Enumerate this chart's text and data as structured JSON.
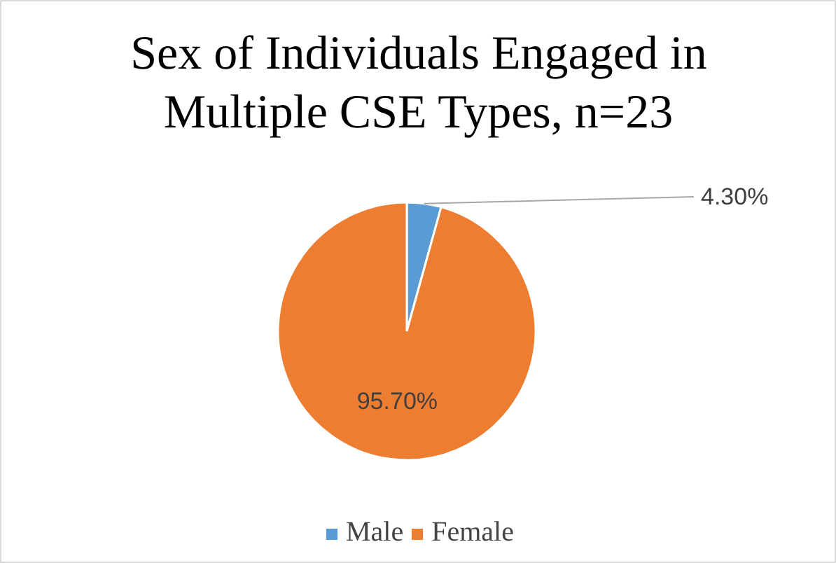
{
  "chart_data": {
    "type": "pie",
    "title": "Sex of Individuals Engaged in Multiple CSE Types, n=23",
    "categories": [
      "Male",
      "Female"
    ],
    "values": [
      4.3,
      95.7
    ],
    "colors": [
      "#5b9bd5",
      "#ed7d31"
    ],
    "value_labels": [
      "4.30%",
      "95.70%"
    ],
    "legend": "bottom"
  }
}
